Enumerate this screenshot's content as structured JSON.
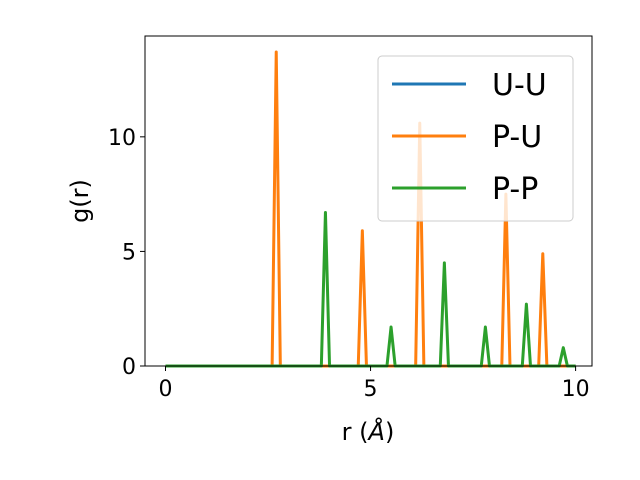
{
  "chart_data": {
    "type": "line",
    "title": "",
    "xlabel": "r (",
    "xlabel_unit": "Å",
    "xlabel_close": ")",
    "ylabel": "g(r)",
    "xlim": [
      -0.5,
      10.4
    ],
    "ylim": [
      0,
      14.4
    ],
    "xticks": [
      0,
      5,
      10
    ],
    "xtick_labels": [
      "0",
      "5",
      "10"
    ],
    "yticks": [
      0,
      5,
      10
    ],
    "ytick_labels": [
      "0",
      "5",
      "10"
    ],
    "grid": false,
    "legend_position": "top-right",
    "series": [
      {
        "name": "U-U",
        "color": "#1f77b4",
        "points": [
          [
            0,
            0
          ],
          [
            10,
            0
          ]
        ]
      },
      {
        "name": "P-U",
        "color": "#ff7f0e",
        "points": [
          [
            0,
            0
          ],
          [
            2.6,
            0
          ],
          [
            2.7,
            13.7
          ],
          [
            2.8,
            0
          ],
          [
            4.7,
            0
          ],
          [
            4.8,
            5.9
          ],
          [
            4.9,
            0
          ],
          [
            6.1,
            0
          ],
          [
            6.2,
            10.6
          ],
          [
            6.3,
            0
          ],
          [
            8.2,
            0
          ],
          [
            8.3,
            7.5
          ],
          [
            8.4,
            0
          ],
          [
            9.1,
            0
          ],
          [
            9.2,
            4.9
          ],
          [
            9.3,
            0
          ],
          [
            10,
            0
          ]
        ]
      },
      {
        "name": "P-P",
        "color": "#2ca02c",
        "points": [
          [
            0,
            0
          ],
          [
            3.8,
            0
          ],
          [
            3.9,
            6.7
          ],
          [
            4.0,
            0
          ],
          [
            5.4,
            0
          ],
          [
            5.5,
            1.7
          ],
          [
            5.6,
            0
          ],
          [
            6.7,
            0
          ],
          [
            6.8,
            4.5
          ],
          [
            6.9,
            0
          ],
          [
            7.7,
            0
          ],
          [
            7.8,
            1.7
          ],
          [
            7.9,
            0
          ],
          [
            8.7,
            0
          ],
          [
            8.8,
            2.7
          ],
          [
            8.9,
            0
          ],
          [
            9.6,
            0
          ],
          [
            9.7,
            0.8
          ],
          [
            9.8,
            0
          ],
          [
            10,
            0
          ]
        ]
      }
    ]
  }
}
